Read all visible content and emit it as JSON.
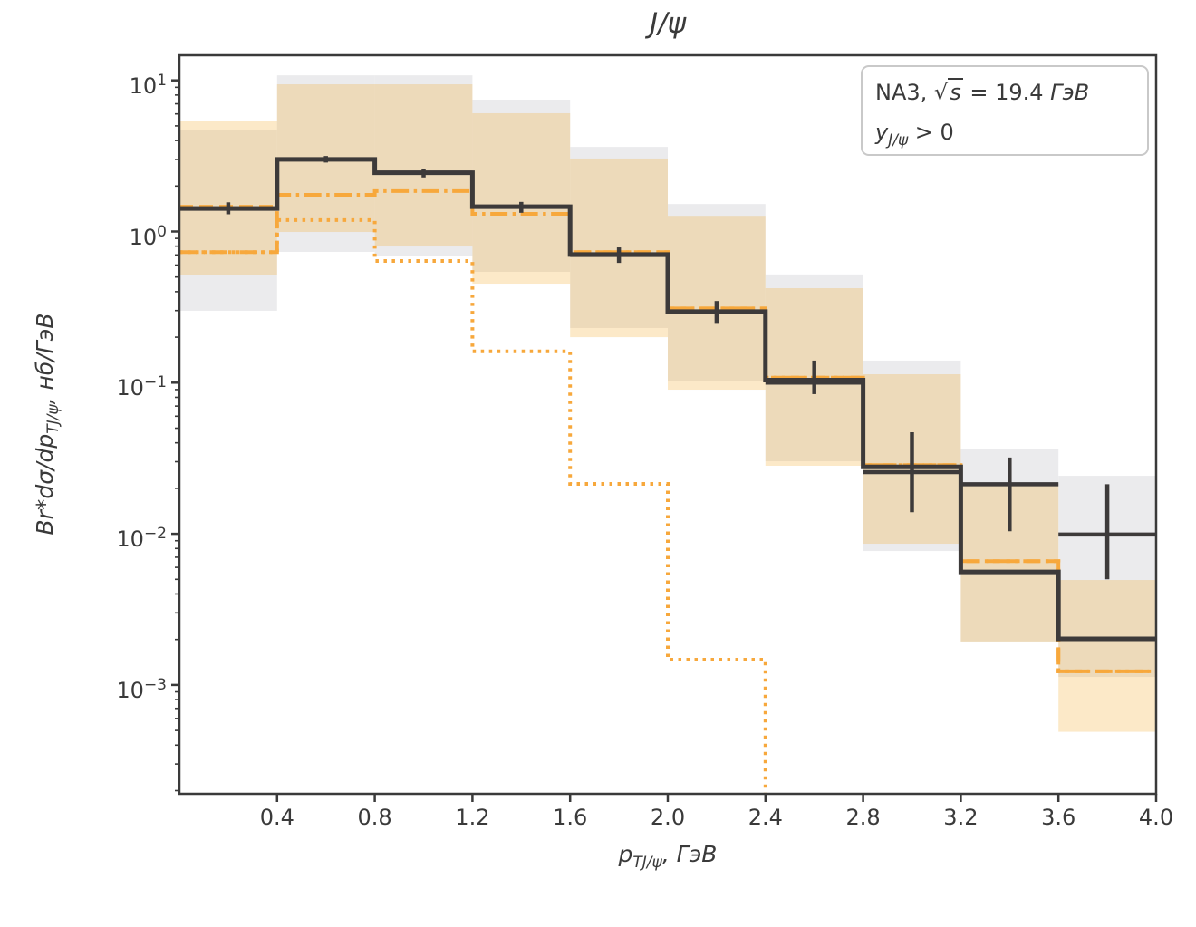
{
  "title": "J/ψ",
  "legend": {
    "line1": {
      "prefix": "NA3, √",
      "s": "s",
      "rest": " = 19.4 ",
      "unit": "ГэВ"
    },
    "line2": {
      "var": "y",
      "sub": "J/ψ",
      "rest": " > 0"
    }
  },
  "axes": {
    "x": {
      "label": {
        "var": "p",
        "sub": "TJ/ψ",
        "rest": ", ГэВ"
      },
      "range": [
        0,
        4.0
      ],
      "ticks": [
        {
          "label": "0.4",
          "value": 0.4
        },
        {
          "label": "0.8",
          "value": 0.8
        },
        {
          "label": "1.2",
          "value": 1.2
        },
        {
          "label": "1.6",
          "value": 1.6
        },
        {
          "label": "2.0",
          "value": 2.0
        },
        {
          "label": "2.4",
          "value": 2.4
        },
        {
          "label": "2.8",
          "value": 2.8
        },
        {
          "label": "3.2",
          "value": 3.2
        },
        {
          "label": "3.6",
          "value": 3.6
        },
        {
          "label": "4.0",
          "value": 4.0
        }
      ]
    },
    "y": {
      "label": {
        "main": "Br*dσ/dp",
        "sub": "TJ/ψ",
        "rest": ", нб/ГэВ"
      },
      "scale": "log",
      "tick_base": "10",
      "ticks": [
        {
          "exp": "1",
          "value": 10
        },
        {
          "exp": "0",
          "value": 1
        },
        {
          "exp": "−1",
          "value": 0.1
        },
        {
          "exp": "−2",
          "value": 0.01
        },
        {
          "exp": "−3",
          "value": 0.001
        }
      ],
      "range": [
        0.00019,
        14.7
      ]
    }
  },
  "chart_data": {
    "type": "line",
    "subtype": "step-histogram-with-errorbars",
    "title": "J/ψ",
    "xlabel": "p_TJ/ψ, ГэВ",
    "ylabel": "Br*dσ/dp_TJ/ψ, нб/ГэВ",
    "xlim": [
      0,
      4.0
    ],
    "ylim": [
      0.00019,
      14.7
    ],
    "grid": false,
    "legend_position": "upper right",
    "bin_edges": [
      0.0,
      0.4,
      0.8,
      1.2,
      1.6,
      2.0,
      2.4,
      2.8,
      3.2,
      3.6,
      4.0
    ],
    "series": [
      {
        "name": "experimental-data-points",
        "style": "errorbar-cross",
        "color": "#3d3a3a",
        "values": [
          1.42,
          3.0,
          2.45,
          1.46,
          0.7,
          0.295,
          0.1,
          0.0256,
          0.0213,
          0.0099
        ],
        "err_lo": [
          1.3,
          2.86,
          2.28,
          1.33,
          0.62,
          0.245,
          0.084,
          0.0139,
          0.0104,
          0.005
        ],
        "err_hi": [
          1.56,
          3.16,
          2.61,
          1.57,
          0.785,
          0.347,
          0.14,
          0.047,
          0.032,
          0.0213
        ]
      },
      {
        "name": "theory-total-solid",
        "style": "solid",
        "color": "#3d3a3a",
        "values": [
          1.42,
          3.0,
          2.45,
          1.46,
          0.705,
          0.295,
          0.104,
          0.0277,
          0.0056,
          0.00202
        ]
      },
      {
        "name": "model-dashed",
        "style": "dashed",
        "color": "#F7A83C",
        "values": [
          1.46,
          3.0,
          2.45,
          1.46,
          0.73,
          0.31,
          0.108,
          0.0285,
          0.0066,
          0.00123
        ]
      },
      {
        "name": "model-dashdot",
        "style": "dashdot",
        "color": "#F7A83C",
        "values": [
          0.73,
          1.75,
          1.85,
          1.31,
          0.73,
          0.31,
          0.108,
          0.0285,
          0.0066,
          0.00123
        ]
      },
      {
        "name": "model-dotted",
        "style": "dotted",
        "color": "#F7A83C",
        "values": [
          0.73,
          1.19,
          0.638,
          0.161,
          0.0214,
          0.00147,
          null,
          null,
          null,
          null
        ],
        "drops_to_zero_after_bin": 6
      }
    ],
    "bands": [
      {
        "name": "gray-uncertainty-band",
        "color": "#EBEBED",
        "hi": [
          4.72,
          10.8,
          10.8,
          7.45,
          3.63,
          1.52,
          0.52,
          0.14,
          0.0366,
          0.0242
        ],
        "lo": [
          0.299,
          0.733,
          0.684,
          0.541,
          0.23,
          0.103,
          0.0302,
          0.0077,
          0.00194,
          0.00113
        ]
      },
      {
        "name": "orange-uncertainty-band",
        "color": "rgba(245,166,35,0.25)",
        "hi": [
          5.42,
          9.42,
          9.42,
          6.06,
          3.04,
          1.27,
          0.422,
          0.1137,
          0.0214,
          0.00495
        ],
        "lo": [
          0.519,
          0.993,
          0.796,
          0.452,
          0.2,
          0.0899,
          0.0282,
          0.0086,
          0.00194,
          0.00049
        ]
      }
    ]
  },
  "colors": {
    "line_dark": "#3d3a3a",
    "orange": "#F7A83C",
    "band_gray": "#EBEBED",
    "band_orange": "rgba(245,166,35,0.25)",
    "text": "#3a3a3a",
    "spine": "#3a3a3a",
    "legend_border": "#c9c9c9"
  }
}
